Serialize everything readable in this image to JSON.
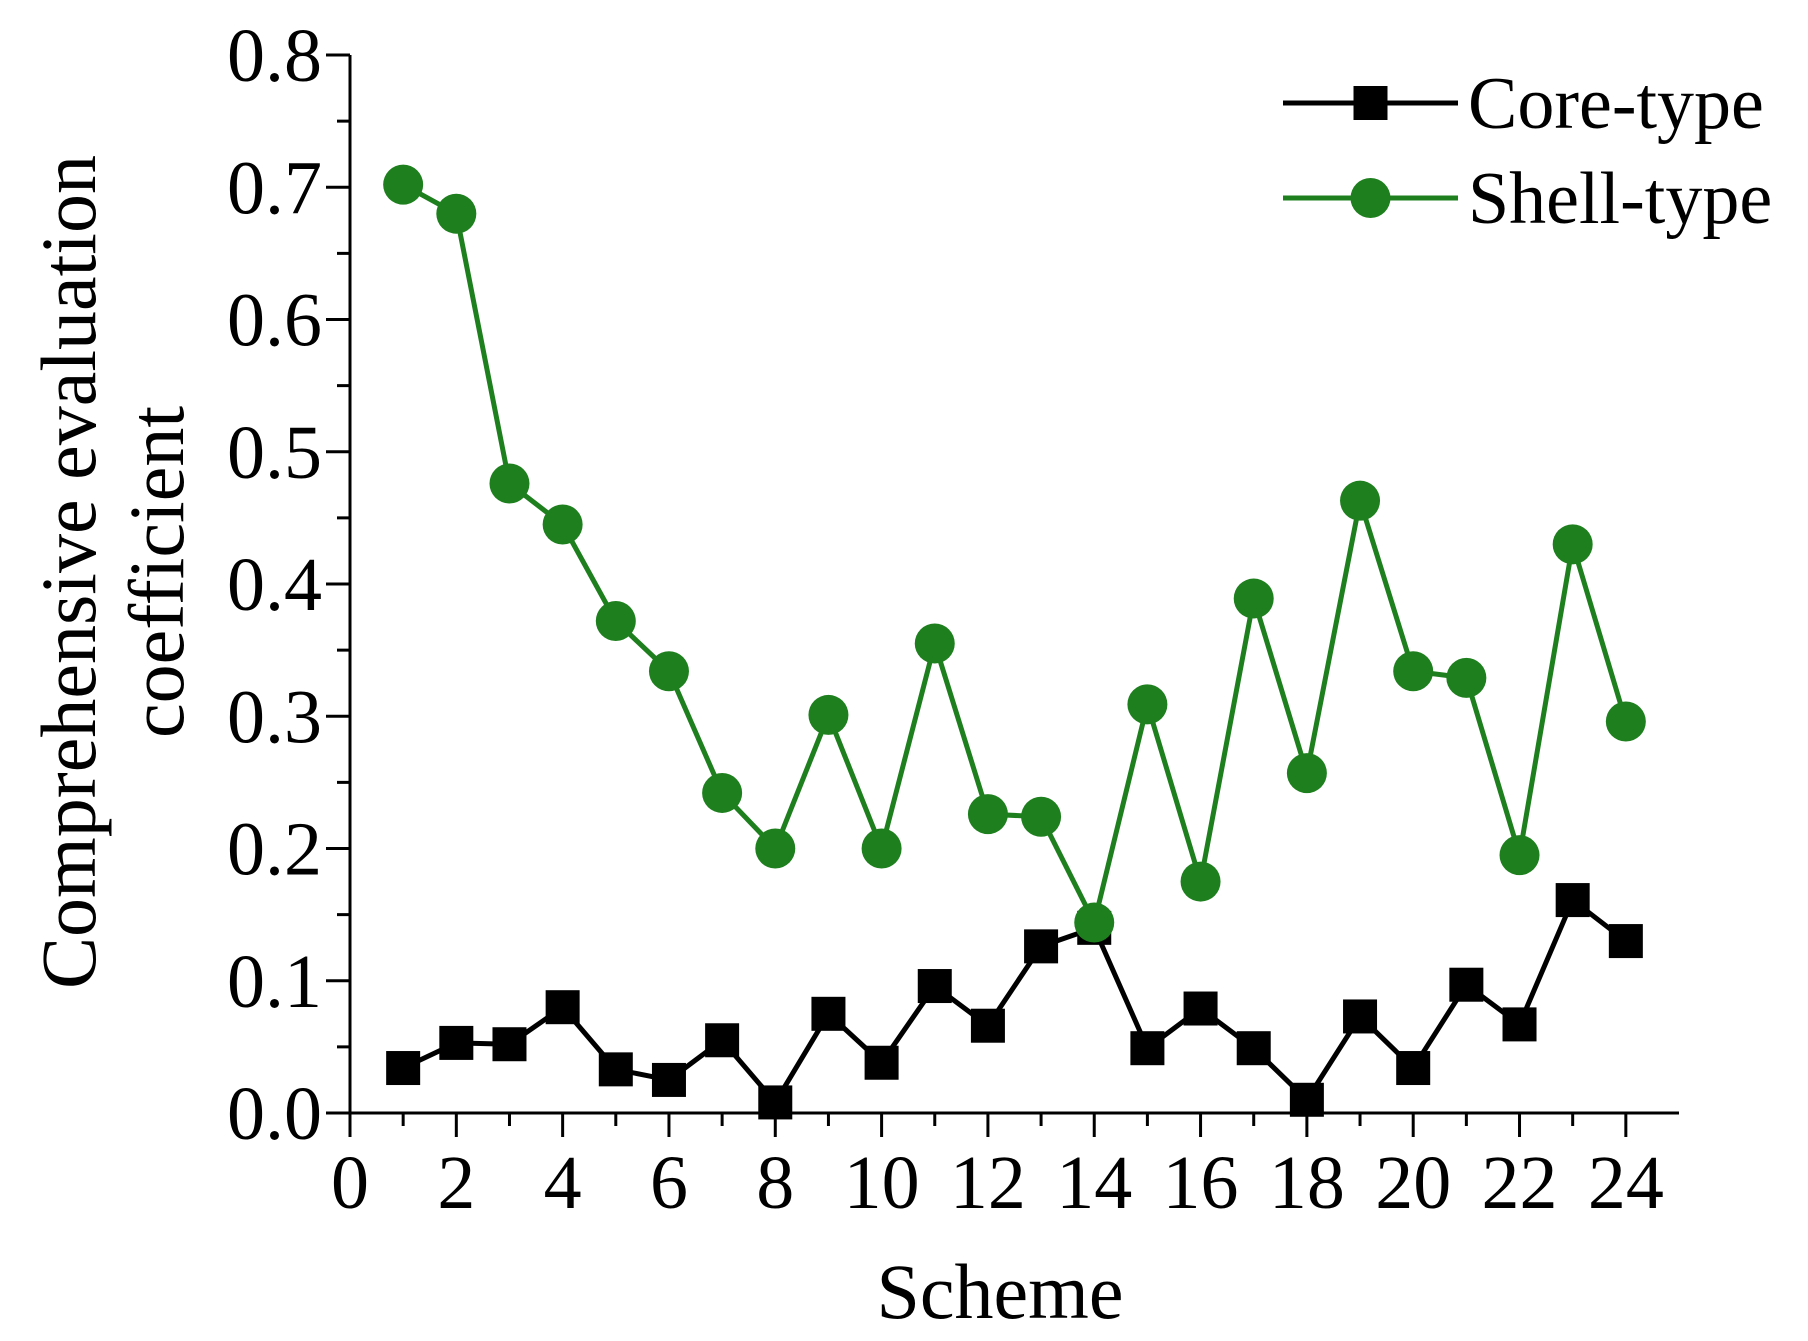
{
  "chart_data": {
    "type": "line",
    "title": "",
    "xlabel": "Scheme",
    "ylabel_lines": [
      "Comprehensive evaluation",
      "coefficient"
    ],
    "xlim": [
      0,
      25
    ],
    "ylim": [
      0,
      0.8
    ],
    "xticks": [
      0,
      2,
      4,
      6,
      8,
      10,
      12,
      14,
      16,
      18,
      20,
      22,
      24
    ],
    "xtick_labels": [
      "0",
      "2",
      "4",
      "6",
      "8",
      "10",
      "12",
      "14",
      "16",
      "18",
      "20",
      "22",
      "24"
    ],
    "yticks": [
      0.0,
      0.1,
      0.2,
      0.3,
      0.4,
      0.5,
      0.6,
      0.7,
      0.8
    ],
    "ytick_labels": [
      "0.0",
      "0.1",
      "0.2",
      "0.3",
      "0.4",
      "0.5",
      "0.6",
      "0.7",
      "0.8"
    ],
    "legend_position": "top-right",
    "x": [
      1,
      2,
      3,
      4,
      5,
      6,
      7,
      8,
      9,
      10,
      11,
      12,
      13,
      14,
      15,
      16,
      17,
      18,
      19,
      20,
      21,
      22,
      23,
      24
    ],
    "series": [
      {
        "name": "Core-type",
        "color": "#000000",
        "marker": "square",
        "values": [
          0.034,
          0.053,
          0.052,
          0.08,
          0.033,
          0.025,
          0.055,
          0.008,
          0.075,
          0.038,
          0.096,
          0.066,
          0.126,
          0.14,
          0.049,
          0.079,
          0.049,
          0.01,
          0.073,
          0.034,
          0.097,
          0.067,
          0.161,
          0.13
        ]
      },
      {
        "name": "Shell-type",
        "color": "#1e7f1e",
        "marker": "circle",
        "values": [
          0.702,
          0.68,
          0.476,
          0.445,
          0.372,
          0.334,
          0.242,
          0.2,
          0.301,
          0.2,
          0.355,
          0.226,
          0.224,
          0.144,
          0.309,
          0.175,
          0.389,
          0.257,
          0.463,
          0.334,
          0.329,
          0.195,
          0.43,
          0.296
        ]
      }
    ]
  }
}
